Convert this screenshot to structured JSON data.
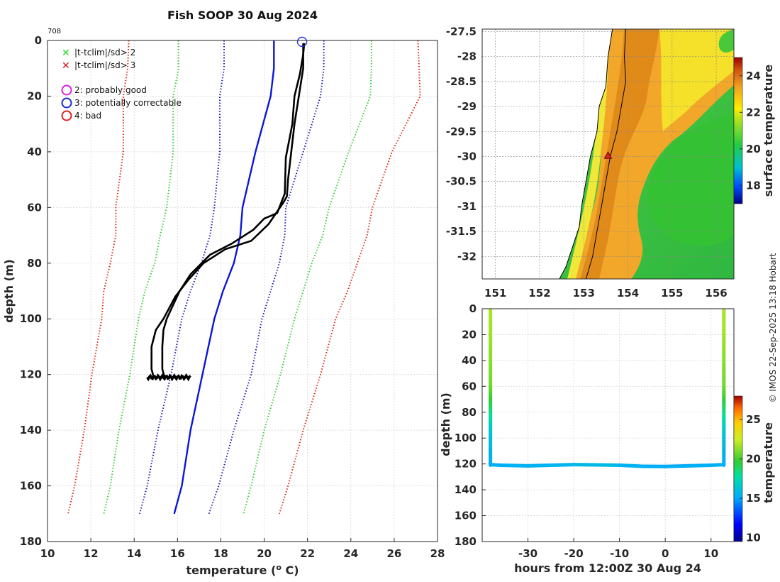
{
  "profile_plot": {
    "id_label": "708",
    "legend": {
      "flag_2sd": "|t-tclim|/sd> 2",
      "flag_3sd": "|t-tclim|/sd> 3",
      "qc2": "2: probably good",
      "qc3": "3: potentially correctable",
      "qc4": "4: bad"
    }
  },
  "map_plot": {
    "colorbar_label": "surface temperature",
    "colorbar_ticks": [
      "18",
      "20",
      "22",
      "24"
    ]
  },
  "section_plot": {
    "colorbar_label": "temperature",
    "colorbar_ticks": [
      "10",
      "15",
      "20",
      "25"
    ]
  },
  "credit": "© IMOS 22-Sep-2025 13:18 Hobart",
  "colors": {
    "climatology_mean": "#0b17d6",
    "sd1": "#1a1ab0",
    "sd2": "#33cc33",
    "sd3": "#d9260f",
    "profile": "#000000",
    "land": "#ffffff"
  },
  "chart_data": [
    {
      "type": "line",
      "title": "Fish SOOP 30 Aug 2024",
      "xlabel": "temperature (o C)",
      "ylabel": "depth (m)",
      "xlim": [
        10,
        28
      ],
      "ylim": [
        180,
        0
      ],
      "xticks": [
        10,
        12,
        14,
        16,
        18,
        20,
        22,
        24,
        26,
        28
      ],
      "yticks": [
        0,
        20,
        40,
        60,
        80,
        100,
        120,
        140,
        160,
        180
      ],
      "series": [
        {
          "name": "climatology mean",
          "style": "solid",
          "color": "#0b17d6",
          "x": [
            20.45,
            20.45,
            20.3,
            19.6,
            19.0,
            18.9,
            18.6,
            18.1,
            17.7,
            17.15,
            16.6,
            16.2,
            15.85
          ],
          "y": [
            0,
            10,
            20,
            40,
            60,
            70,
            80,
            90,
            100,
            120,
            140,
            160,
            170
          ]
        },
        {
          "name": "mean - 1 sd",
          "style": "dotted",
          "color": "#1a1ab0",
          "x": [
            18.15,
            18.15,
            17.95,
            17.95,
            17.7,
            17.5,
            17.1,
            16.6,
            16.2,
            15.7,
            15.1,
            14.6,
            14.25
          ],
          "y": [
            0,
            10,
            20,
            40,
            60,
            70,
            80,
            90,
            100,
            120,
            140,
            160,
            170
          ]
        },
        {
          "name": "mean + 1 sd",
          "style": "dotted",
          "color": "#1a1ab0",
          "x": [
            22.75,
            22.75,
            22.6,
            21.8,
            21.0,
            20.95,
            20.7,
            20.3,
            19.9,
            19.4,
            18.6,
            17.9,
            17.45
          ],
          "y": [
            0,
            10,
            20,
            40,
            60,
            70,
            80,
            90,
            100,
            120,
            140,
            160,
            170
          ]
        },
        {
          "name": "mean - 2 sd",
          "style": "dotted",
          "color": "#33cc33",
          "x": [
            16.05,
            16.05,
            15.8,
            15.8,
            15.5,
            15.2,
            14.95,
            14.5,
            14.2,
            13.8,
            13.3,
            12.9,
            12.6
          ],
          "y": [
            0,
            10,
            20,
            40,
            60,
            70,
            80,
            90,
            100,
            120,
            140,
            160,
            170
          ]
        },
        {
          "name": "mean + 2 sd",
          "style": "dotted",
          "color": "#33cc33",
          "x": [
            24.95,
            24.95,
            24.9,
            23.9,
            23.0,
            22.7,
            22.2,
            21.8,
            21.4,
            20.75,
            20.0,
            19.4,
            19.05
          ],
          "y": [
            0,
            10,
            20,
            40,
            60,
            70,
            80,
            90,
            100,
            120,
            140,
            160,
            170
          ]
        },
        {
          "name": "mean - 3 sd",
          "style": "dotted",
          "color": "#d9260f",
          "x": [
            13.75,
            13.7,
            13.5,
            13.5,
            13.15,
            13.15,
            12.9,
            12.6,
            12.5,
            12.05,
            11.7,
            11.25,
            10.95
          ],
          "y": [
            0,
            10,
            20,
            40,
            60,
            70,
            80,
            90,
            100,
            120,
            140,
            160,
            170
          ]
        },
        {
          "name": "mean + 3 sd",
          "style": "dotted",
          "color": "#d9260f",
          "x": [
            27.1,
            27.15,
            27.2,
            25.9,
            25.0,
            24.75,
            24.3,
            23.85,
            23.3,
            22.6,
            21.8,
            21.1,
            20.7
          ],
          "y": [
            0,
            10,
            20,
            40,
            60,
            70,
            80,
            90,
            100,
            120,
            140,
            160,
            170
          ]
        },
        {
          "name": "profile (down)",
          "style": "solid",
          "color": "#000000",
          "x": [
            21.85,
            21.8,
            21.65,
            21.4,
            21.3,
            21.1,
            21.0,
            20.95,
            20.6,
            20.0,
            19.5,
            18.5,
            17.5,
            16.6,
            16.1,
            15.8,
            15.5,
            15.35,
            15.3,
            15.3,
            15.4
          ],
          "y": [
            1,
            5,
            12,
            20,
            30,
            38,
            42,
            55,
            62,
            64,
            68,
            73,
            77,
            84,
            90,
            95,
            100,
            104,
            110,
            118,
            121
          ]
        },
        {
          "name": "profile (up)",
          "style": "solid",
          "color": "#000000",
          "x": [
            21.8,
            21.8,
            21.4,
            21.1,
            21.05,
            20.9,
            20.2,
            19.4,
            18.2,
            17.2,
            16.5,
            15.9,
            15.35,
            15.0,
            14.8,
            14.8,
            14.9
          ],
          "y": [
            1,
            10,
            30,
            50,
            56,
            58,
            66,
            72,
            75,
            80,
            86,
            92,
            100,
            104,
            110,
            118,
            121
          ]
        }
      ],
      "annotations": [
        {
          "type": "circle_marker",
          "qc": 3,
          "x": 21.75,
          "y": 0.5
        },
        {
          "type": "bottom_scatter",
          "x_range": [
            14.6,
            16.6
          ],
          "y": 121
        }
      ]
    },
    {
      "type": "heatmap",
      "title": "",
      "xlabel": "",
      "ylabel": "",
      "xlim": [
        150.7,
        156.4
      ],
      "ylim": [
        -32.45,
        -27.45
      ],
      "xticks": [
        151,
        152,
        153,
        154,
        155,
        156
      ],
      "yticks": [
        -27.5,
        -28,
        -28.5,
        -29,
        -29.5,
        -30,
        -30.5,
        -31,
        -31.5,
        -32
      ],
      "colorbar_range": [
        17,
        25
      ],
      "coastline": {
        "lon": [
          153.65,
          153.55,
          153.5,
          153.35,
          153.3,
          153.15,
          153.05,
          152.95,
          152.9,
          152.75,
          152.6,
          152.45
        ],
        "lat": [
          -27.45,
          -28.0,
          -28.6,
          -29.0,
          -29.5,
          -30.0,
          -30.5,
          -31.0,
          -31.4,
          -31.8,
          -32.2,
          -32.45
        ]
      },
      "shelf_contour": {
        "lon": [
          153.95,
          153.92,
          153.95,
          153.85,
          153.75,
          153.6,
          153.5,
          153.4,
          153.3,
          153.2,
          153.05
        ],
        "lat": [
          -27.45,
          -28.0,
          -28.5,
          -29.0,
          -29.5,
          -30.0,
          -30.5,
          -31.0,
          -31.5,
          -32.0,
          -32.45
        ]
      },
      "station": {
        "lon": 153.55,
        "lat": -29.98
      }
    },
    {
      "type": "scatter",
      "title": "",
      "xlabel": "hours from 12:00Z 30 Aug 24",
      "ylabel": "depth (m)",
      "xlim": [
        -40,
        15
      ],
      "ylim": [
        180,
        0
      ],
      "xticks": [
        -30,
        -20,
        -10,
        0,
        10
      ],
      "yticks": [
        0,
        20,
        40,
        60,
        80,
        100,
        120,
        140,
        160,
        180
      ],
      "colorbar_range": [
        9.5,
        28
      ],
      "color_variable": "temperature",
      "profiles": [
        {
          "hours": -38.2,
          "depth": [
            0,
            20,
            40,
            60,
            70,
            80,
            90,
            100,
            110,
            121
          ],
          "temperature": [
            21.8,
            21.6,
            21.2,
            20.8,
            19.8,
            18.5,
            17.0,
            16.2,
            15.6,
            15.3
          ]
        },
        {
          "hours": 12.8,
          "depth": [
            0,
            20,
            40,
            60,
            70,
            80,
            90,
            100,
            110,
            121
          ],
          "temperature": [
            21.8,
            21.6,
            21.2,
            20.8,
            19.8,
            18.5,
            17.0,
            16.2,
            15.6,
            15.3
          ]
        }
      ],
      "bottom_track": {
        "hours": [
          -38.2,
          -36,
          -30,
          -25,
          -20,
          -15,
          -10,
          -5,
          0,
          5,
          10,
          12.8
        ],
        "depth": [
          120.5,
          121,
          121.5,
          121,
          120.5,
          120.7,
          121,
          121.8,
          122,
          121.5,
          121,
          120.5
        ],
        "temperature": [
          15.3,
          15.3,
          15.4,
          15.5,
          15.6,
          16.0,
          15.6,
          15.3,
          15.2,
          15.3,
          15.4,
          15.3
        ]
      }
    }
  ]
}
